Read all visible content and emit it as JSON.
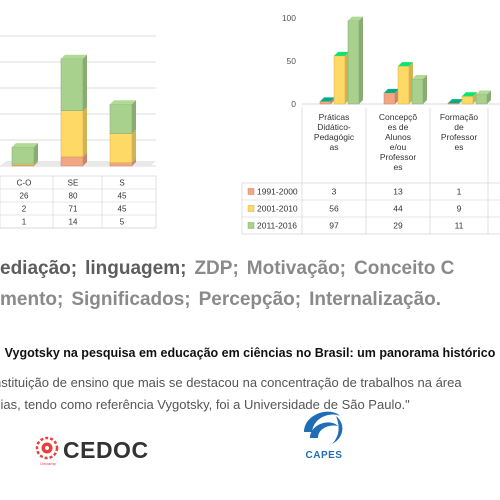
{
  "chart_data": [
    {
      "type": "bar",
      "stacked": true,
      "categories": [
        "C-O",
        "SE",
        "S"
      ],
      "series": [
        {
          "values": [
            1,
            14,
            5
          ],
          "color": "#f4a582"
        },
        {
          "values": [
            2,
            71,
            45
          ],
          "color": "#ffd966"
        },
        {
          "values": [
            26,
            80,
            45
          ],
          "color": "#a9d18e"
        }
      ],
      "table_rows": [
        {
          "values": [
            "26",
            "80",
            "45"
          ]
        },
        {
          "values": [
            "2",
            "71",
            "45"
          ]
        },
        {
          "values": [
            "1",
            "14",
            "5"
          ]
        }
      ],
      "grid": true
    },
    {
      "type": "bar",
      "categories": [
        "Práticas Didático-Pedagógic as",
        "Concepçõ es de Alunos e/ou Professor es",
        "Formação de Professor es"
      ],
      "series": [
        {
          "name": "1991-2000",
          "values": [
            3,
            13,
            1
          ],
          "color": "#f4a582"
        },
        {
          "name": "2001-2010",
          "values": [
            56,
            44,
            9
          ],
          "color": "#ffd966"
        },
        {
          "name": "2011-2016",
          "values": [
            97,
            29,
            11
          ],
          "color": "#a9d18e"
        }
      ],
      "yticks": [
        "100",
        "50",
        "0"
      ],
      "ylim": [
        0,
        100
      ]
    }
  ],
  "keywords": {
    "line1": [
      "ediação;",
      "linguagem;",
      "ZDP;",
      "Motivação;",
      "Conceito C"
    ],
    "line2": [
      "mento;",
      "Significados;",
      "Percepção;",
      "Internalização."
    ]
  },
  "article": {
    "title": "Vygotsky na pesquisa em educação em ciências no Brasil: um panorama histórico",
    "body_line1": "nstituição de ensino que mais se destacou na concentração de trabalhos na área",
    "body_line2": "cias, tendo como referência Vygotsky, foi a Universidade de São Paulo.\""
  },
  "logos": {
    "cedoc": {
      "name": "CEDOC",
      "tagline": "Unicamp",
      "color": "#e8403a"
    },
    "capes": {
      "name": "CAPES",
      "color": "#1f6db5"
    }
  }
}
